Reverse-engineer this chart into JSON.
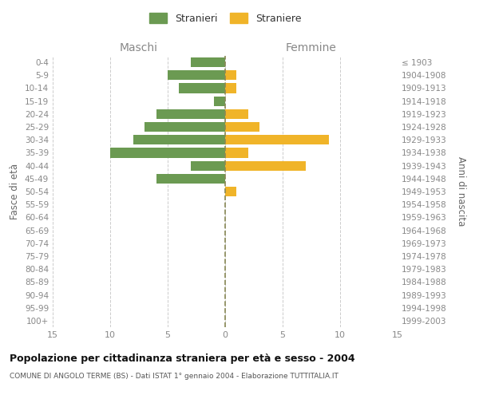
{
  "age_groups": [
    "0-4",
    "5-9",
    "10-14",
    "15-19",
    "20-24",
    "25-29",
    "30-34",
    "35-39",
    "40-44",
    "45-49",
    "50-54",
    "55-59",
    "60-64",
    "65-69",
    "70-74",
    "75-79",
    "80-84",
    "85-89",
    "90-94",
    "95-99",
    "100+"
  ],
  "birth_years": [
    "1999-2003",
    "1994-1998",
    "1989-1993",
    "1984-1988",
    "1979-1983",
    "1974-1978",
    "1969-1973",
    "1964-1968",
    "1959-1963",
    "1954-1958",
    "1949-1953",
    "1944-1948",
    "1939-1943",
    "1934-1938",
    "1929-1933",
    "1924-1928",
    "1919-1923",
    "1914-1918",
    "1909-1913",
    "1904-1908",
    "≤ 1903"
  ],
  "males": [
    3,
    5,
    4,
    1,
    6,
    7,
    8,
    10,
    3,
    6,
    0,
    0,
    0,
    0,
    0,
    0,
    0,
    0,
    0,
    0,
    0
  ],
  "females": [
    0,
    1,
    1,
    0,
    2,
    3,
    9,
    2,
    7,
    0,
    1,
    0,
    0,
    0,
    0,
    0,
    0,
    0,
    0,
    0,
    0
  ],
  "male_color": "#6b9a52",
  "female_color": "#f0b429",
  "xlim": 15,
  "title": "Popolazione per cittadinanza straniera per età e sesso - 2004",
  "subtitle": "COMUNE DI ANGOLO TERME (BS) - Dati ISTAT 1° gennaio 2004 - Elaborazione TUTTITALIA.IT",
  "ylabel_left": "Fasce di età",
  "ylabel_right": "Anni di nascita",
  "legend_male": "Stranieri",
  "legend_female": "Straniere",
  "col_maschi": "Maschi",
  "col_femmine": "Femmine",
  "background_color": "#ffffff",
  "grid_color": "#cccccc",
  "tick_color": "#888888",
  "xticks": [
    -15,
    -10,
    -5,
    0,
    5,
    10,
    15
  ],
  "xtick_labels": [
    "15",
    "10",
    "5",
    "0",
    "5",
    "10",
    "15"
  ]
}
